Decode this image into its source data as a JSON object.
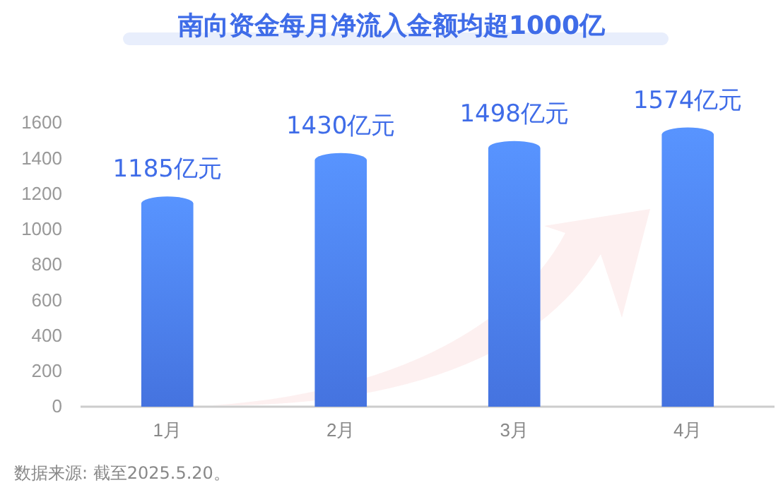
{
  "chart_data": {
    "type": "bar",
    "title": "南向资金每月净流入金额均超1000亿",
    "categories": [
      "1月",
      "2月",
      "3月",
      "4月"
    ],
    "values": [
      1185,
      1430,
      1498,
      1574
    ],
    "value_labels": [
      "1185亿元",
      "1430亿元",
      "1498亿元",
      "1574亿元"
    ],
    "color": "#4a7cf0",
    "ylim": [
      0,
      1600
    ],
    "yticks": [
      0,
      200,
      400,
      600,
      800,
      1000,
      1200,
      1400,
      1600
    ],
    "grid": false,
    "annotations": [
      "数据来源: 截至2025.5.20。"
    ]
  }
}
